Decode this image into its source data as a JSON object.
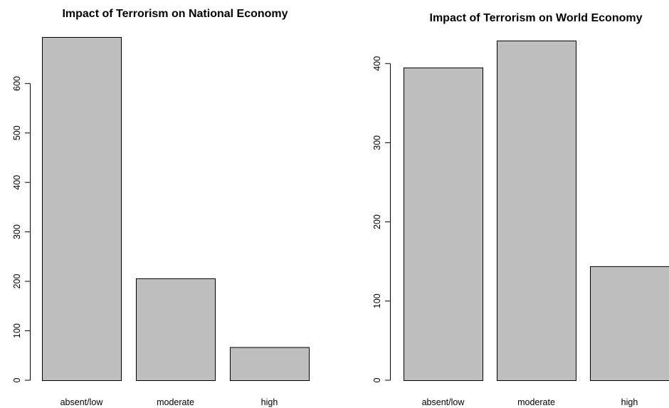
{
  "chart_data": [
    {
      "type": "bar",
      "title": "Impact of Terrorism on National Economy",
      "categories": [
        "absent/low",
        "moderate",
        "high"
      ],
      "values": [
        694,
        206,
        67
      ],
      "ylim": [
        0,
        694
      ],
      "yticks": [
        0,
        100,
        200,
        300,
        400,
        500,
        600
      ],
      "xlabel": "",
      "ylabel": "",
      "bar_color": "#bebebe",
      "grid": false
    },
    {
      "type": "bar",
      "title": "Impact of Terrorism on World Economy",
      "categories": [
        "absent/low",
        "moderate",
        "high"
      ],
      "values": [
        395,
        429,
        144
      ],
      "ylim": [
        0,
        429
      ],
      "yticks": [
        0,
        100,
        200,
        300,
        400
      ],
      "xlabel": "",
      "ylabel": "",
      "bar_color": "#bebebe",
      "grid": false
    }
  ]
}
